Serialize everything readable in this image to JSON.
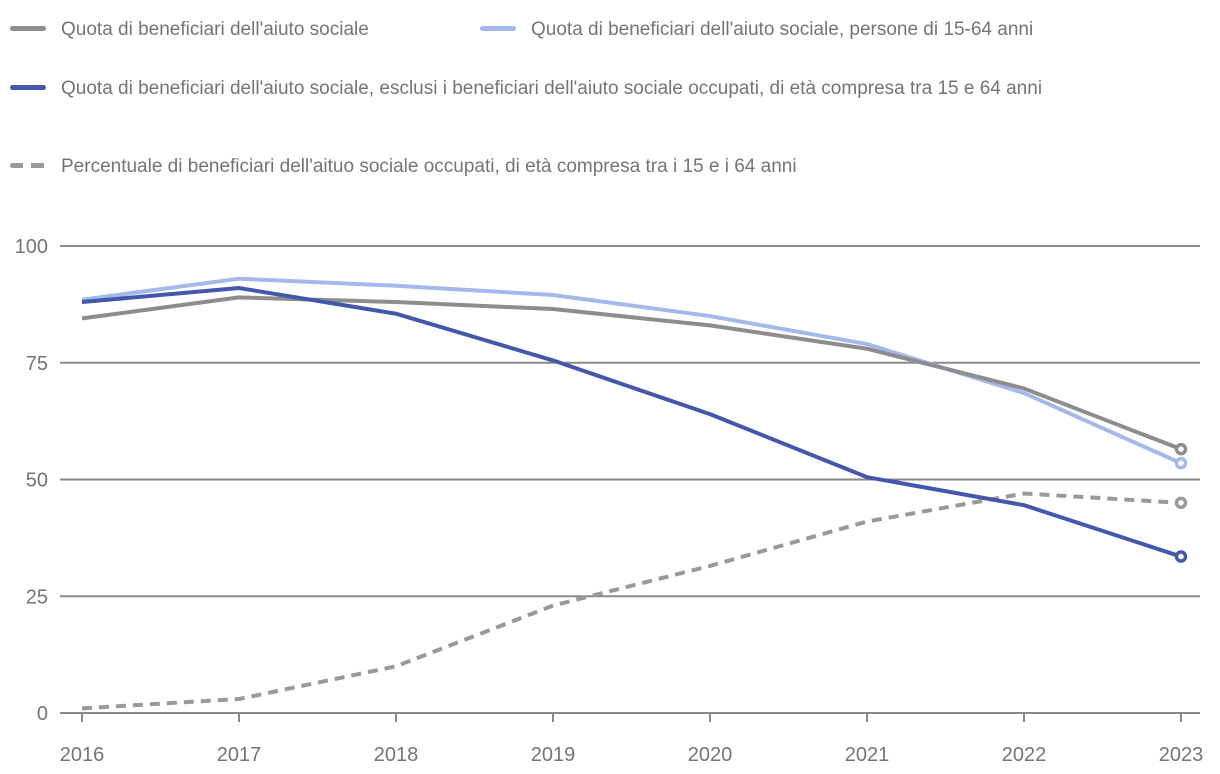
{
  "legend": {
    "items": [
      {
        "label": "Quota di beneficiari dell'aiuto sociale",
        "color": "#8d8d8d",
        "style": "solid"
      },
      {
        "label": "Quota di beneficiari dell'aiuto sociale, persone di 15-64 anni",
        "color": "#a5b8ea",
        "style": "solid"
      },
      {
        "label": "Quota di beneficiari dell'aiuto sociale, esclusi i beneficiari dell'aiuto sociale occupati, di età compresa tra 15 e 64 anni",
        "color": "#4458ab",
        "style": "solid"
      },
      {
        "label": "Percentuale di beneficiari dell'aituo sociale occupati, di età compresa tra i 15 e i 64 anni",
        "color": "#999999",
        "style": "dashed"
      }
    ]
  },
  "chart_data": {
    "type": "line",
    "x": [
      "2016",
      "2017",
      "2018",
      "2019",
      "2020",
      "2021",
      "2022",
      "2023"
    ],
    "series": [
      {
        "name": "Quota di beneficiari dell'aiuto sociale",
        "color": "#8d8d8d",
        "style": "solid",
        "end_marker": true,
        "values": [
          84.5,
          89,
          88,
          86.5,
          83,
          78,
          69.5,
          56.5
        ]
      },
      {
        "name": "Quota di beneficiari dell'aiuto sociale, persone di 15-64 anni",
        "color": "#a5b8ea",
        "style": "solid",
        "end_marker": true,
        "values": [
          88.5,
          93,
          91.5,
          89.5,
          85,
          79,
          68.5,
          53.5
        ]
      },
      {
        "name": "Quota di beneficiari dell'aiuto sociale, esclusi i beneficiari dell'aiuto sociale occupati, di età compresa tra 15 e 64 anni",
        "color": "#4458ab",
        "style": "solid",
        "end_marker": true,
        "values": [
          88,
          91,
          85.5,
          75.5,
          64,
          50.5,
          44.5,
          33.5
        ]
      },
      {
        "name": "Percentuale di beneficiari dell'aituo sociale occupati, di età compresa tra i 15 e i 64 anni",
        "color": "#999999",
        "style": "dashed",
        "end_marker": true,
        "values": [
          1,
          3,
          10,
          23,
          31.5,
          41,
          47,
          45
        ]
      }
    ],
    "ylim": [
      0,
      100
    ],
    "yticks": [
      0,
      25,
      50,
      75,
      100
    ],
    "grid": "horizontal",
    "legend_position": "top",
    "colors": {
      "grid": "#8a8a8a",
      "axis": "#8a8a8a",
      "tick_label": "#757575",
      "legend_text": "#757575",
      "background": "#ffffff"
    }
  }
}
